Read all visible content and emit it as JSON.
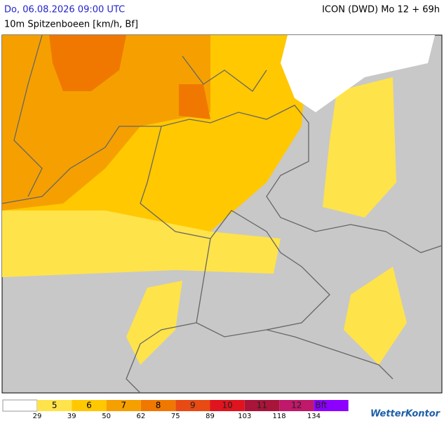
{
  "header": {
    "title": "Do, 06.08.2026 09:00 UTC",
    "model": "ICON (DWD) Mo 12 + 69h",
    "subtitle": "10m Spitzenboeen [km/h, Bf]"
  },
  "legend": {
    "classes": [
      {
        "label": "5",
        "color": "#ffe34a"
      },
      {
        "label": "6",
        "color": "#ffc800"
      },
      {
        "label": "7",
        "color": "#f5a000"
      },
      {
        "label": "8",
        "color": "#f07800"
      },
      {
        "label": "9",
        "color": "#e84a14"
      },
      {
        "label": "10",
        "color": "#e0141e"
      },
      {
        "label": "11",
        "color": "#a8143a"
      },
      {
        "label": "12",
        "color": "#c0186a"
      },
      {
        "label": "Bft",
        "color": "#8c00ff"
      }
    ],
    "thresholds": [
      29,
      39,
      50,
      62,
      75,
      89,
      103,
      118,
      134
    ]
  },
  "brand": "WetterKontor"
}
